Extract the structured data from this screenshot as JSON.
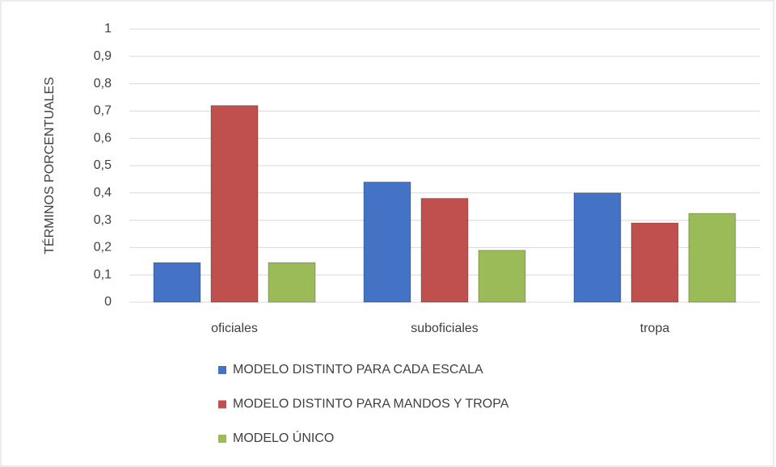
{
  "chart_data": {
    "type": "bar",
    "y_label": "TÉRMINOS PORCENTUALES",
    "categories": [
      "oficiales",
      "suboficiales",
      "tropa"
    ],
    "series": [
      {
        "name": "MODELO DISTINTO PARA CADA ESCALA",
        "color": "#4472c4",
        "values": [
          0.145,
          0.44,
          0.4
        ]
      },
      {
        "name": "MODELO DISTINTO PARA MANDOS Y TROPA",
        "color": "#c0504d",
        "values": [
          0.72,
          0.38,
          0.29
        ]
      },
      {
        "name": "MODELO ÚNICO",
        "color": "#9bbb59",
        "values": [
          0.145,
          0.19,
          0.325
        ]
      }
    ],
    "ylim": [
      0,
      1
    ],
    "yticks": [
      0,
      {
        "value": 0.1,
        "label": "0,1"
      },
      {
        "value": 0.2,
        "label": "0,2"
      },
      {
        "value": 0.3,
        "label": "0,3"
      },
      {
        "value": 0.4,
        "label": "0,4"
      },
      {
        "value": 0.5,
        "label": "0,5"
      },
      {
        "value": 0.6,
        "label": "0,6"
      },
      {
        "value": 0.7,
        "label": "0,7"
      },
      {
        "value": 0.8,
        "label": "0,8"
      },
      {
        "value": 0.9,
        "label": "0,9"
      },
      1
    ],
    "grid": true,
    "legend": "bottom"
  }
}
